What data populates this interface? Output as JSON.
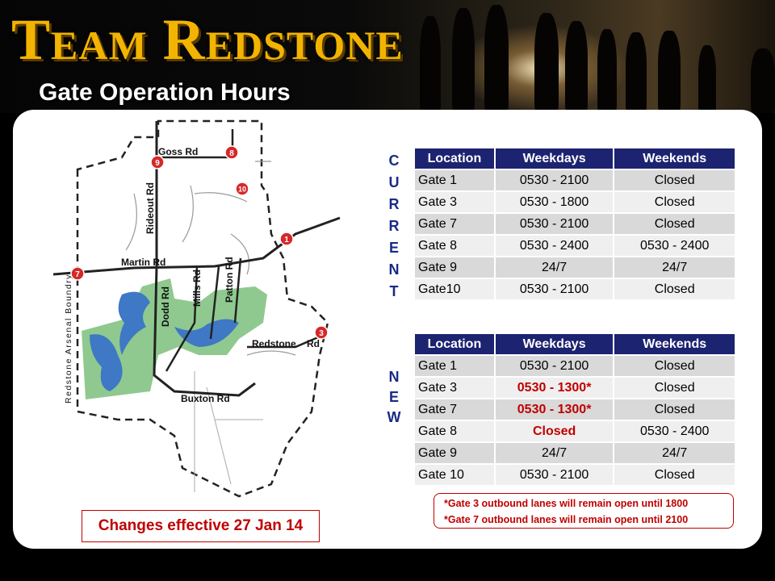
{
  "header": {
    "brand": "Team Redstone",
    "subtitle": "Gate Operation Hours"
  },
  "map": {
    "roads": [
      "Goss Rd",
      "Rideout Rd",
      "Martin Rd",
      "Dodd Rd",
      "Mills Rd",
      "Patton Rd",
      "Redstone",
      "Rd",
      "Buxton Rd"
    ],
    "boundary_label": "Redstone Arsenal Boundry",
    "gate_markers": [
      "1",
      "3",
      "7",
      "8",
      "9",
      "10"
    ],
    "colors": {
      "water": "#3f78c4",
      "green": "#8fc98f",
      "marker": "#d62828",
      "road": "#222222"
    }
  },
  "current": {
    "label": [
      "C",
      "U",
      "R",
      "R",
      "E",
      "N",
      "T"
    ],
    "headers": [
      "Location",
      "Weekdays",
      "Weekends"
    ],
    "rows": [
      [
        "Gate 1",
        "0530 - 2100",
        "Closed"
      ],
      [
        "Gate 3",
        "0530 - 1800",
        "Closed"
      ],
      [
        "Gate 7",
        "0530 - 2100",
        "Closed"
      ],
      [
        "Gate 8",
        "0530 - 2400",
        "0530 - 2400"
      ],
      [
        "Gate 9",
        "24/7",
        "24/7"
      ],
      [
        "Gate10",
        "0530 - 2100",
        "Closed"
      ]
    ]
  },
  "new": {
    "label": [
      "N",
      "E",
      "W"
    ],
    "headers": [
      "Location",
      "Weekdays",
      "Weekends"
    ],
    "rows": [
      [
        "Gate 1",
        "0530 - 2100",
        "Closed"
      ],
      [
        "Gate 3",
        "0530 - 1300*",
        "Closed"
      ],
      [
        "Gate 7",
        "0530 - 1300*",
        "Closed"
      ],
      [
        "Gate 8",
        "Closed",
        "0530 - 2400"
      ],
      [
        "Gate 9",
        "24/7",
        "24/7"
      ],
      [
        "Gate 10",
        "0530 - 2100",
        "Closed"
      ]
    ]
  },
  "notes": [
    "*Gate 3 outbound lanes will remain open until 1800",
    "*Gate 7 outbound lanes will remain open until 2100"
  ],
  "effective": "Changes effective 27 Jan 14",
  "colors": {
    "brand": "#f2b400",
    "table_header": "#1c2370",
    "highlight": "#c00000"
  }
}
